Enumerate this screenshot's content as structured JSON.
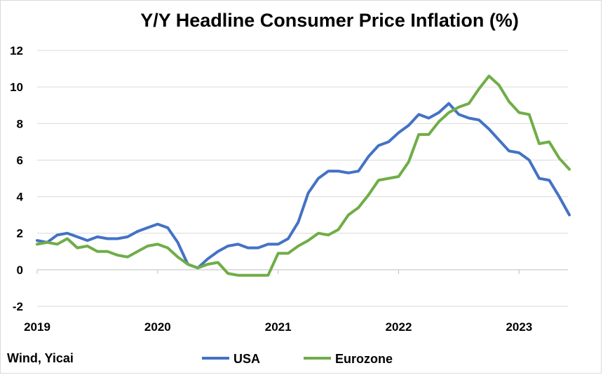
{
  "chart_data": {
    "type": "line",
    "title": "Y/Y Headline Consumer Price Inflation (%)",
    "source": "Wind, Yicai",
    "ylim": [
      -2,
      12
    ],
    "y_ticks": [
      "-2",
      "0",
      "2",
      "4",
      "6",
      "8",
      "10",
      "12"
    ],
    "x_ticks": [
      "2019",
      "2020",
      "2021",
      "2022",
      "2023"
    ],
    "grid": true,
    "legend_position": "bottom",
    "series": [
      {
        "name": "USA",
        "color": "#4472c4",
        "values": [
          1.6,
          1.5,
          1.9,
          2.0,
          1.8,
          1.6,
          1.8,
          1.7,
          1.7,
          1.8,
          2.1,
          2.3,
          2.5,
          2.3,
          1.5,
          0.3,
          0.1,
          0.6,
          1.0,
          1.3,
          1.4,
          1.2,
          1.2,
          1.4,
          1.4,
          1.7,
          2.6,
          4.2,
          5.0,
          5.4,
          5.4,
          5.3,
          5.4,
          6.2,
          6.8,
          7.0,
          7.5,
          7.9,
          8.5,
          8.3,
          8.6,
          9.1,
          8.5,
          8.3,
          8.2,
          7.7,
          7.1,
          6.5,
          6.4,
          6.0,
          5.0,
          4.9,
          4.0,
          3.0
        ]
      },
      {
        "name": "Eurozone",
        "color": "#70ad47",
        "values": [
          1.4,
          1.5,
          1.4,
          1.7,
          1.2,
          1.3,
          1.0,
          1.0,
          0.8,
          0.7,
          1.0,
          1.3,
          1.4,
          1.2,
          0.7,
          0.3,
          0.1,
          0.3,
          0.4,
          -0.2,
          -0.3,
          -0.3,
          -0.3,
          -0.3,
          0.9,
          0.9,
          1.3,
          1.6,
          2.0,
          1.9,
          2.2,
          3.0,
          3.4,
          4.1,
          4.9,
          5.0,
          5.1,
          5.9,
          7.4,
          7.4,
          8.1,
          8.6,
          8.9,
          9.1,
          9.9,
          10.6,
          10.1,
          9.2,
          8.6,
          8.5,
          6.9,
          7.0,
          6.1,
          5.5
        ]
      }
    ]
  }
}
